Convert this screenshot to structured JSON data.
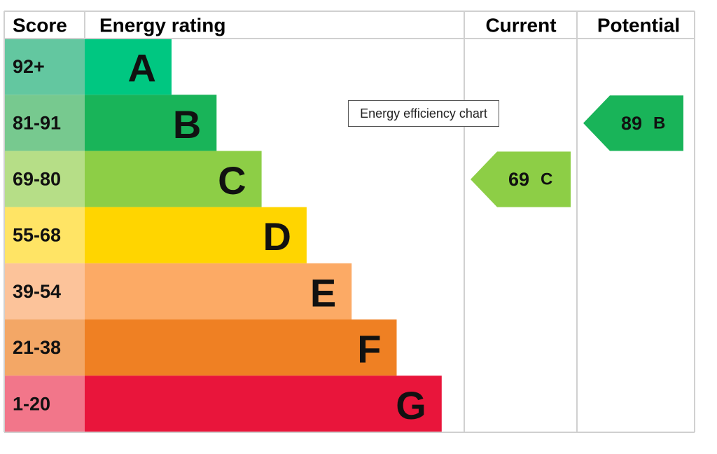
{
  "header": {
    "score": "Score",
    "rating": "Energy rating",
    "current": "Current",
    "potential": "Potential"
  },
  "bands": [
    {
      "score": "92+",
      "letter": "A",
      "color": "#00c781",
      "score_color": "#63c7a0"
    },
    {
      "score": "81-91",
      "letter": "B",
      "color": "#19b459",
      "score_color": "#77c98f"
    },
    {
      "score": "69-80",
      "letter": "C",
      "color": "#8dce46",
      "score_color": "#b6de87"
    },
    {
      "score": "55-68",
      "letter": "D",
      "color": "#ffd500",
      "score_color": "#ffe465"
    },
    {
      "score": "39-54",
      "letter": "E",
      "color": "#fcaa65",
      "score_color": "#fcc39a"
    },
    {
      "score": "21-38",
      "letter": "F",
      "color": "#ef8023",
      "score_color": "#f3a766"
    },
    {
      "score": "1-20",
      "letter": "G",
      "color": "#e9153b",
      "score_color": "#f2768a"
    }
  ],
  "current": {
    "value": "69",
    "letter": "C"
  },
  "potential": {
    "value": "89",
    "letter": "B"
  },
  "tooltip": "Energy efficiency chart"
}
